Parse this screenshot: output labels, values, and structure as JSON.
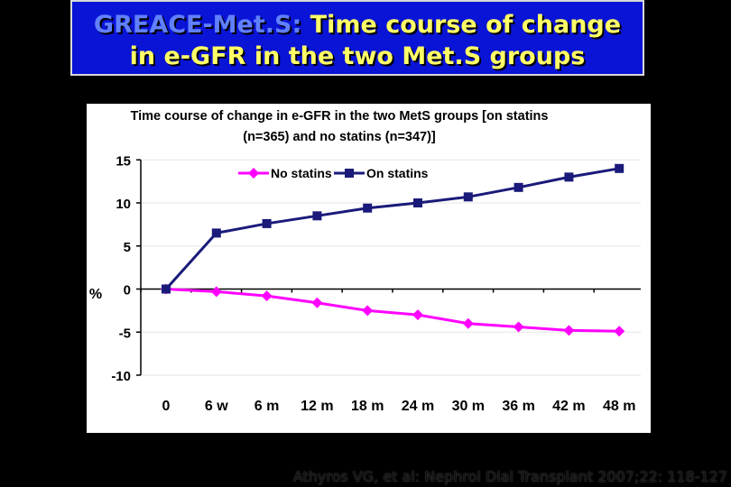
{
  "slide": {
    "title_prefix": "GREACE-Met.S:",
    "title_rest": "Time course of change",
    "title_line2": "in e-GFR in the two Met.S groups",
    "citation": "Athyros VG, et al: Nephrol Dial Transplant 2007;22: 118-127",
    "colors": {
      "title_bg": "#0a14d6",
      "title_text": "#ffff66",
      "background": "#000000"
    }
  },
  "chart_data": {
    "type": "line",
    "title": [
      "Time course of change in e-GFR in the two MetS groups [on statins",
      "(n=365) and no statins (n=347)]"
    ],
    "ylabel": "%",
    "xlabel": "",
    "ylim": [
      -10,
      15
    ],
    "yticks": [
      "15",
      "10",
      "5",
      "0",
      "-5",
      "-10"
    ],
    "ytick_values": [
      15,
      10,
      5,
      0,
      -5,
      -10
    ],
    "categories": [
      "0",
      "6 w",
      "6 m",
      "12 m",
      "18 m",
      "24 m",
      "30 m",
      "36 m",
      "42 m",
      "48 m"
    ],
    "legend_position": "top-center",
    "series": [
      {
        "name": "No statins",
        "color": "#ff00ff",
        "marker": "diamond",
        "values": [
          0,
          -0.3,
          -0.8,
          -1.6,
          -2.5,
          -3.0,
          -4.0,
          -4.4,
          -4.8,
          -4.9
        ]
      },
      {
        "name": "On statins",
        "color": "#1a1a7a",
        "marker": "square",
        "values": [
          0,
          6.5,
          7.6,
          8.5,
          9.4,
          10.0,
          10.7,
          11.8,
          13.0,
          14.0
        ]
      }
    ]
  }
}
